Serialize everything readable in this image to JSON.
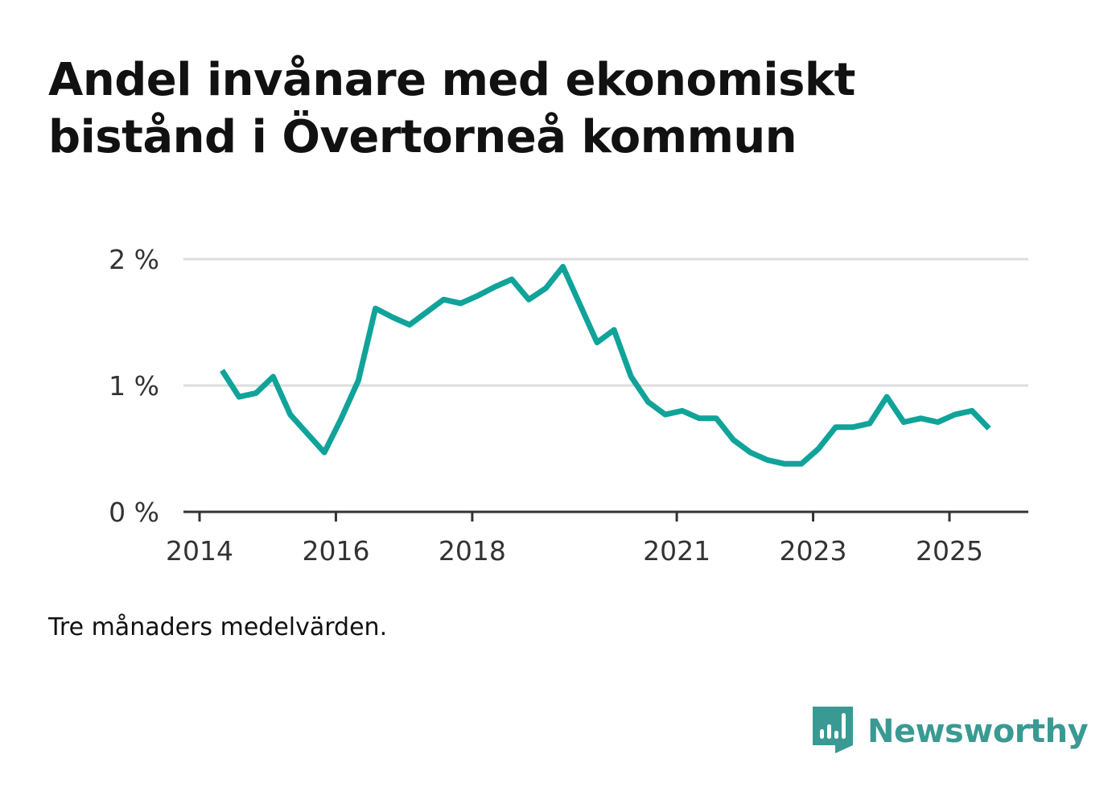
{
  "title": {
    "line1": "Andel invånare med ekonomiskt",
    "line2": "bistånd i Övertorneå kommun"
  },
  "note": "Tre månaders medelvärden.",
  "brand": {
    "name": "Newsworthy",
    "icon": "newsworthy-logo-icon",
    "color": "#3a9a93"
  },
  "colors": {
    "line": "#10a39a",
    "grid": "#dddddd",
    "axis": "#333333",
    "tick_text": "#333333"
  },
  "chart_data": {
    "type": "line",
    "title": "Andel invånare med ekonomiskt bistånd i Övertorneå kommun",
    "xlabel": "",
    "ylabel": "",
    "x_ticks": [
      {
        "label": "2014",
        "value": 2014.0
      },
      {
        "label": "2016",
        "value": 2016.0
      },
      {
        "label": "2018",
        "value": 2018.0
      },
      {
        "label": "2021",
        "value": 2021.0
      },
      {
        "label": "2023",
        "value": 2023.0
      },
      {
        "label": "2025",
        "value": 2025.0
      }
    ],
    "y_ticks": [
      {
        "label": "0 %",
        "value": 0
      },
      {
        "label": "1 %",
        "value": 1
      },
      {
        "label": "2 %",
        "value": 2
      }
    ],
    "xlim": [
      2013.8,
      2026.2
    ],
    "ylim": [
      0,
      2
    ],
    "grid": true,
    "series": [
      {
        "name": "Andel invånare med ekonomiskt bistånd",
        "x": [
          2014.33,
          2014.58,
          2014.83,
          2015.08,
          2015.33,
          2015.58,
          2015.83,
          2016.08,
          2016.33,
          2016.58,
          2016.83,
          2017.08,
          2017.33,
          2017.58,
          2017.83,
          2018.08,
          2018.33,
          2018.58,
          2018.83,
          2019.08,
          2019.33,
          2019.58,
          2019.83,
          2020.08,
          2020.33,
          2020.58,
          2020.83,
          2021.08,
          2021.33,
          2021.58,
          2021.83,
          2022.08,
          2022.33,
          2022.58,
          2022.83,
          2023.08,
          2023.33,
          2023.58,
          2023.83,
          2024.08,
          2024.33,
          2024.58,
          2024.83,
          2025.08,
          2025.33,
          2025.58
        ],
        "values": [
          1.12,
          0.91,
          0.94,
          1.07,
          0.77,
          0.62,
          0.47,
          0.74,
          1.04,
          1.61,
          1.54,
          1.48,
          1.58,
          1.68,
          1.65,
          1.71,
          1.78,
          1.84,
          1.68,
          1.77,
          1.94,
          1.64,
          1.34,
          1.44,
          1.07,
          0.87,
          0.77,
          0.8,
          0.74,
          0.74,
          0.57,
          0.47,
          0.41,
          0.38,
          0.38,
          0.5,
          0.67,
          0.67,
          0.7,
          0.91,
          0.71,
          0.74,
          0.71,
          0.77,
          0.8,
          0.66
        ]
      }
    ]
  }
}
